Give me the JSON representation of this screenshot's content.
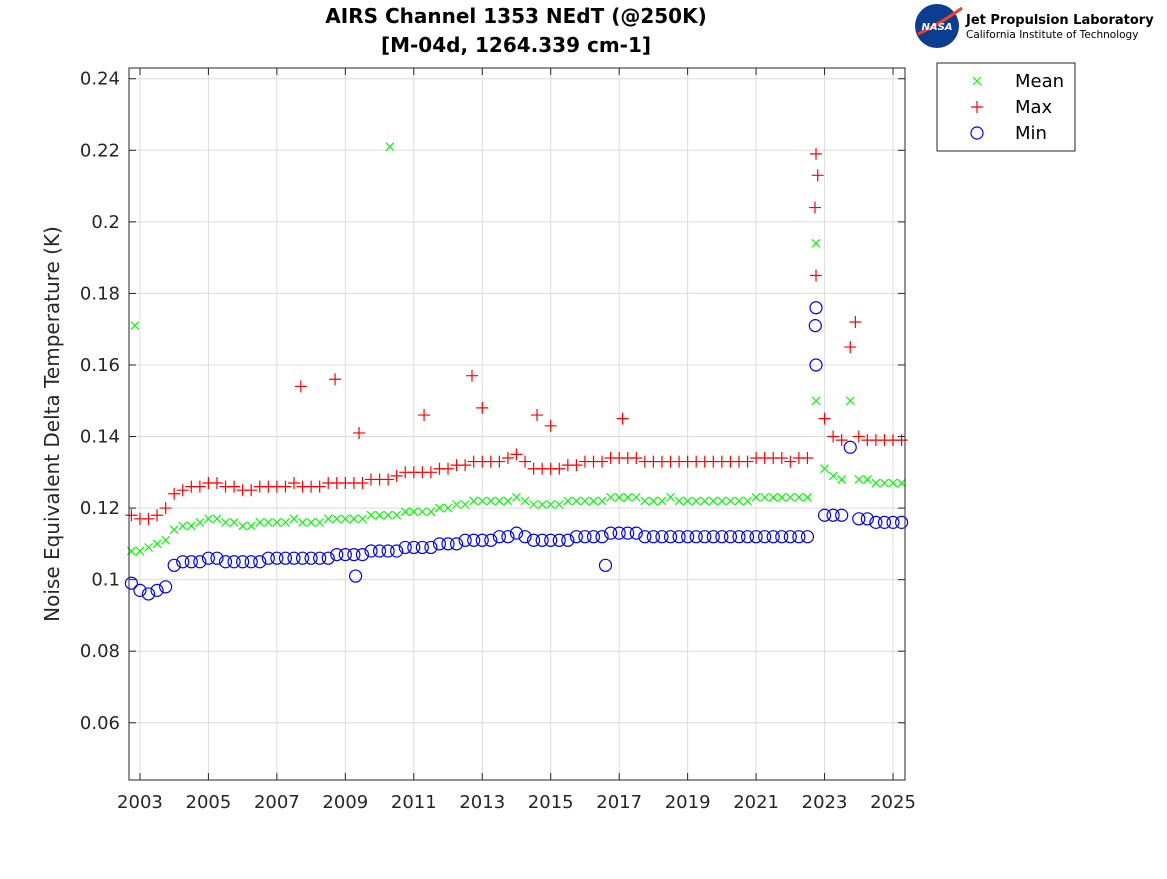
{
  "logo": {
    "org": "Jet Propulsion Laboratory",
    "sub": "California Institute of Technology",
    "badge": "NASA"
  },
  "chart_data": {
    "type": "scatter",
    "title": "AIRS Channel 1353 NEdT (@250K)",
    "subtitle": "[M-04d, 1264.339 cm-1]",
    "xlabel": "",
    "ylabel": "Noise Equivalent Delta Temperature (K)",
    "xlim": [
      2002.68,
      2025.35
    ],
    "ylim": [
      0.044,
      0.243
    ],
    "xticks": [
      "2003",
      "2005",
      "2007",
      "2009",
      "2011",
      "2013",
      "2015",
      "2017",
      "2019",
      "2021",
      "2023",
      "2025"
    ],
    "yticks": [
      "0.06",
      "0.08",
      "0.1",
      "0.12",
      "0.14",
      "0.16",
      "0.18",
      "0.2",
      "0.22",
      "0.24"
    ],
    "grid": true,
    "legend_position": "outside-top-right",
    "x_start": 2002.75,
    "x_step": 0.25,
    "series": [
      {
        "name": "Mean",
        "marker": "x",
        "color": "#00ff00",
        "values": [
          0.108,
          0.108,
          0.109,
          0.11,
          0.111,
          0.114,
          0.115,
          0.115,
          0.116,
          0.117,
          0.117,
          0.116,
          0.116,
          0.115,
          0.115,
          0.116,
          0.116,
          0.116,
          0.116,
          0.117,
          0.116,
          0.116,
          0.116,
          0.117,
          0.117,
          0.117,
          0.117,
          0.117,
          0.118,
          0.118,
          0.118,
          0.118,
          0.119,
          0.119,
          0.119,
          0.119,
          0.12,
          0.12,
          0.121,
          0.121,
          0.122,
          0.122,
          0.122,
          0.122,
          0.122,
          0.123,
          0.122,
          0.121,
          0.121,
          0.121,
          0.121,
          0.122,
          0.122,
          0.122,
          0.122,
          0.122,
          0.123,
          0.123,
          0.123,
          0.123,
          0.122,
          0.122,
          0.122,
          0.123,
          0.122,
          0.122,
          0.122,
          0.122,
          0.122,
          0.122,
          0.122,
          0.122,
          0.122,
          0.123,
          0.123,
          0.123,
          0.123,
          0.123,
          0.123,
          0.123,
          0.15,
          0.131,
          0.129,
          0.128,
          0.15,
          0.128,
          0.128,
          0.127,
          0.127,
          0.127,
          0.127
        ],
        "outliers": [
          [
            2002.85,
            0.171
          ],
          [
            2010.3,
            0.221
          ],
          [
            2022.75,
            0.194
          ]
        ]
      },
      {
        "name": "Max",
        "marker": "+",
        "color": "#ff0000",
        "values": [
          0.118,
          0.117,
          0.117,
          0.118,
          0.12,
          0.124,
          0.125,
          0.126,
          0.126,
          0.127,
          0.127,
          0.126,
          0.126,
          0.125,
          0.125,
          0.126,
          0.126,
          0.126,
          0.126,
          0.127,
          0.126,
          0.126,
          0.126,
          0.127,
          0.127,
          0.127,
          0.127,
          0.127,
          0.128,
          0.128,
          0.128,
          0.129,
          0.13,
          0.13,
          0.13,
          0.13,
          0.131,
          0.131,
          0.132,
          0.132,
          0.133,
          0.133,
          0.133,
          0.133,
          0.134,
          0.135,
          0.133,
          0.131,
          0.131,
          0.131,
          0.131,
          0.132,
          0.132,
          0.133,
          0.133,
          0.133,
          0.134,
          0.134,
          0.134,
          0.134,
          0.133,
          0.133,
          0.133,
          0.133,
          0.133,
          0.133,
          0.133,
          0.133,
          0.133,
          0.133,
          0.133,
          0.133,
          0.133,
          0.134,
          0.134,
          0.134,
          0.134,
          0.133,
          0.134,
          0.134,
          0.185,
          0.145,
          0.14,
          0.139,
          0.165,
          0.14,
          0.139,
          0.139,
          0.139,
          0.139,
          0.139
        ],
        "outliers": [
          [
            2007.7,
            0.154
          ],
          [
            2008.7,
            0.156
          ],
          [
            2012.7,
            0.157
          ],
          [
            2009.4,
            0.141
          ],
          [
            2011.3,
            0.146
          ],
          [
            2013.0,
            0.148
          ],
          [
            2014.6,
            0.146
          ],
          [
            2015.0,
            0.143
          ],
          [
            2017.1,
            0.145
          ],
          [
            2022.75,
            0.219
          ],
          [
            2022.8,
            0.213
          ],
          [
            2022.72,
            0.204
          ],
          [
            2023.9,
            0.172
          ]
        ]
      },
      {
        "name": "Min",
        "marker": "o",
        "color": "#0000ff",
        "values": [
          0.099,
          0.097,
          0.096,
          0.097,
          0.098,
          0.104,
          0.105,
          0.105,
          0.105,
          0.106,
          0.106,
          0.105,
          0.105,
          0.105,
          0.105,
          0.105,
          0.106,
          0.106,
          0.106,
          0.106,
          0.106,
          0.106,
          0.106,
          0.106,
          0.107,
          0.107,
          0.107,
          0.107,
          0.108,
          0.108,
          0.108,
          0.108,
          0.109,
          0.109,
          0.109,
          0.109,
          0.11,
          0.11,
          0.11,
          0.111,
          0.111,
          0.111,
          0.111,
          0.112,
          0.112,
          0.113,
          0.112,
          0.111,
          0.111,
          0.111,
          0.111,
          0.111,
          0.112,
          0.112,
          0.112,
          0.112,
          0.113,
          0.113,
          0.113,
          0.113,
          0.112,
          0.112,
          0.112,
          0.112,
          0.112,
          0.112,
          0.112,
          0.112,
          0.112,
          0.112,
          0.112,
          0.112,
          0.112,
          0.112,
          0.112,
          0.112,
          0.112,
          0.112,
          0.112,
          0.112,
          0.16,
          0.118,
          0.118,
          0.118,
          0.137,
          0.117,
          0.117,
          0.116,
          0.116,
          0.116,
          0.116
        ],
        "outliers": [
          [
            2022.75,
            0.176
          ],
          [
            2022.73,
            0.171
          ],
          [
            2016.6,
            0.104
          ],
          [
            2009.3,
            0.101
          ]
        ]
      }
    ]
  }
}
